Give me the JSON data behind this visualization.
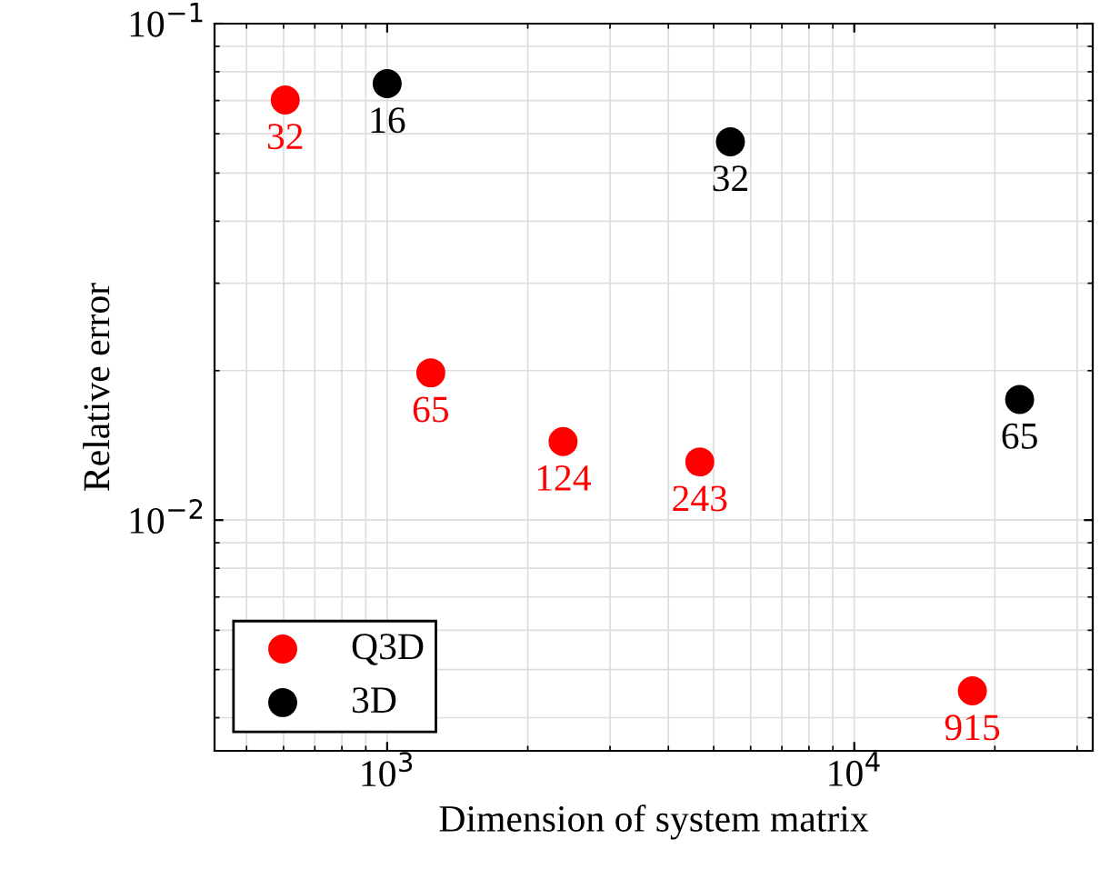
{
  "chart_data": {
    "type": "scatter",
    "xlabel": "Dimension of system matrix",
    "ylabel": "Relative error",
    "log": "xy",
    "xlim": [
      427,
      32400
    ],
    "ylim": [
      0.00343,
      0.1
    ],
    "xticks": [
      {
        "value": 1000,
        "label": "10$^{3}$"
      },
      {
        "value": 10000,
        "label": "10$^{4}$"
      }
    ],
    "yticks": [
      {
        "value": 0.01,
        "label": "10$^{−2}$"
      },
      {
        "value": 0.1,
        "label": "10$^{−1}$"
      }
    ],
    "grid": true,
    "legend": "bottom left",
    "marker": "circle",
    "series": [
      {
        "name": "Q3D",
        "color": "#ff0000",
        "x": [
          605,
          1240,
          2380,
          4670,
          17900
        ],
        "values": [
          0.0702,
          0.0198,
          0.0144,
          0.0131,
          0.00453
        ]
      },
      {
        "name": "3D",
        "color": "#000000",
        "x": [
          1000,
          5430,
          22600
        ],
        "values": [
          0.0757,
          0.0578,
          0.0175
        ]
      }
    ],
    "annotations": [
      {
        "text": "32",
        "x": 605,
        "y": 0.0702
      },
      {
        "text": "65",
        "x": 1240,
        "y": 0.0198
      },
      {
        "text": "124",
        "x": 2380,
        "y": 0.0144
      },
      {
        "text": "243",
        "x": 4670,
        "y": 0.0131
      },
      {
        "text": "915",
        "x": 17900,
        "y": 0.00453
      },
      {
        "text": "16",
        "x": 1000,
        "y": 0.0757
      },
      {
        "text": "32",
        "x": 5430,
        "y": 0.0578
      },
      {
        "text": "65",
        "x": 22600,
        "y": 0.0175
      }
    ]
  }
}
